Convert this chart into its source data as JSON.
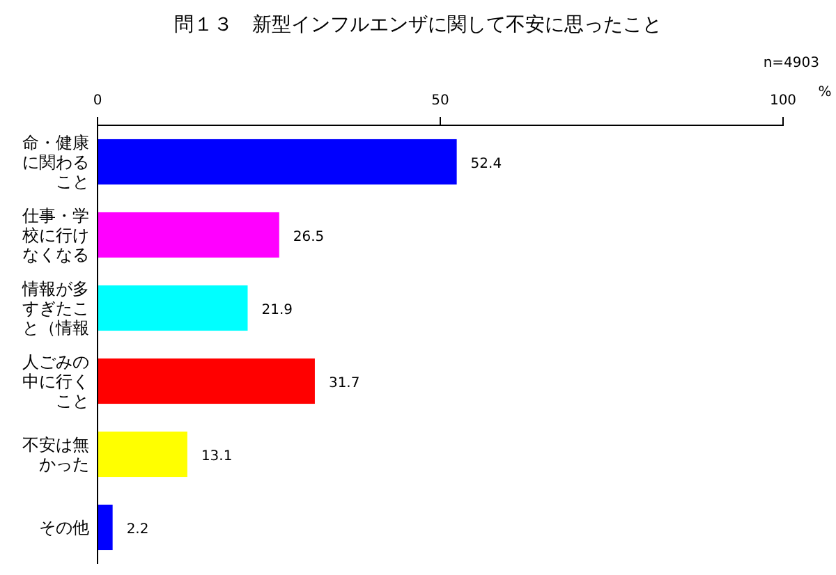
{
  "chart_data": {
    "type": "bar",
    "orientation": "horizontal",
    "title": "問１３　新型インフルエンザに関して不安に思ったこと",
    "xlabel": "%",
    "annotations": [
      "n=4903"
    ],
    "categories": [
      "命・健康に関わること",
      "仕事・学校に行けなくなる",
      "情報が多すぎたこと（情報",
      "人ごみの中に行くこと",
      "不安は無かった",
      "その他"
    ],
    "values": [
      52.4,
      26.5,
      21.9,
      31.7,
      13.1,
      2.2
    ],
    "colors": [
      "#0000ff",
      "#ff00ff",
      "#00ffff",
      "#ff0000",
      "#ffff00",
      "#0000ff"
    ],
    "xlim": [
      0,
      100
    ],
    "xticks": [
      0,
      50,
      100
    ],
    "data_labels": true
  }
}
